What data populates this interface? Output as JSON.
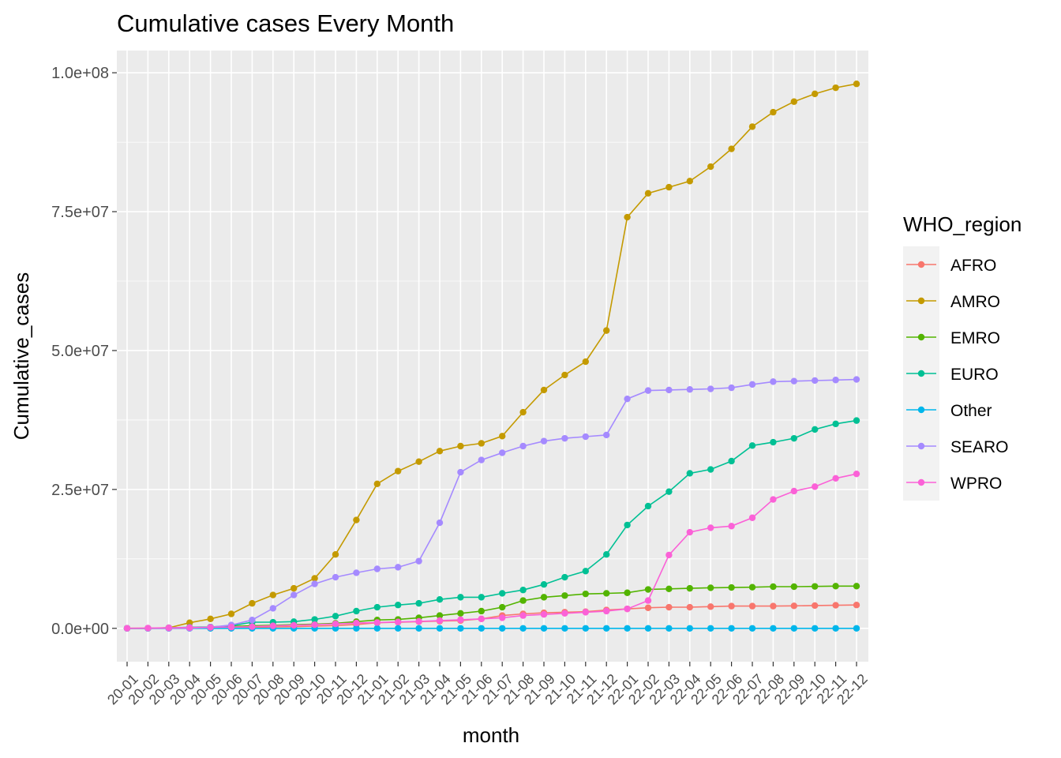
{
  "chart_data": {
    "type": "line",
    "title": "Cumulative cases Every Month",
    "xlabel": "month",
    "ylabel": "Cumulative_cases",
    "ylim": [
      -6000000,
      104000000
    ],
    "yticks": [
      0,
      25000000,
      50000000,
      75000000,
      100000000
    ],
    "ytick_labels": [
      "0.0e+00",
      "2.5e+07",
      "5.0e+07",
      "7.5e+07",
      "1.0e+08"
    ],
    "grid": true,
    "legend_title": "WHO_region",
    "legend_position": "right",
    "categories": [
      "20-01",
      "20-02",
      "20-03",
      "20-04",
      "20-05",
      "20-06",
      "20-07",
      "20-08",
      "20-09",
      "20-10",
      "20-11",
      "20-12",
      "21-01",
      "21-02",
      "21-03",
      "21-04",
      "21-05",
      "21-06",
      "21-07",
      "21-08",
      "21-09",
      "21-10",
      "21-11",
      "21-12",
      "22-01",
      "22-02",
      "22-03",
      "22-04",
      "22-05",
      "22-06",
      "22-07",
      "22-08",
      "22-09",
      "22-10",
      "22-11",
      "22-12"
    ],
    "series": [
      {
        "name": "AFRO",
        "color": "#F8766D",
        "values": [
          0,
          0,
          0,
          0,
          10000,
          50000,
          150000,
          250000,
          300000,
          400000,
          500000,
          700000,
          1000000,
          1100000,
          1200000,
          1300000,
          1400000,
          1700000,
          2300000,
          2600000,
          2800000,
          2900000,
          3000000,
          3300000,
          3500000,
          3700000,
          3800000,
          3800000,
          3900000,
          4000000,
          4000000,
          4000000,
          4050000,
          4100000,
          4150000,
          4200000
        ]
      },
      {
        "name": "AMRO",
        "color": "#C49A00",
        "values": [
          5000,
          10000,
          100000,
          1000000,
          1700000,
          2600000,
          4500000,
          6000000,
          7200000,
          9000000,
          13300000,
          19500000,
          26000000,
          28300000,
          30000000,
          31900000,
          32800000,
          33300000,
          34600000,
          38900000,
          42900000,
          45600000,
          48000000,
          53600000,
          74000000,
          78300000,
          79400000,
          80500000,
          83100000,
          86300000,
          90300000,
          92900000,
          94800000,
          96200000,
          97300000,
          98000000
        ]
      },
      {
        "name": "EMRO",
        "color": "#53B400",
        "values": [
          0,
          0,
          10000,
          50000,
          150000,
          350000,
          450000,
          550000,
          650000,
          750000,
          900000,
          1200000,
          1500000,
          1600000,
          1900000,
          2300000,
          2700000,
          3100000,
          3800000,
          5000000,
          5600000,
          5900000,
          6200000,
          6300000,
          6400000,
          7000000,
          7100000,
          7200000,
          7300000,
          7350000,
          7400000,
          7500000,
          7500000,
          7550000,
          7600000,
          7600000
        ]
      },
      {
        "name": "EURO",
        "color": "#00C094",
        "values": [
          0,
          0,
          100000,
          200000,
          250000,
          450000,
          1100000,
          1100000,
          1200000,
          1600000,
          2200000,
          3100000,
          3800000,
          4200000,
          4500000,
          5200000,
          5600000,
          5600000,
          6300000,
          6900000,
          7900000,
          9200000,
          10300000,
          13300000,
          18600000,
          22000000,
          24600000,
          27900000,
          28600000,
          30100000,
          32900000,
          33500000,
          34200000,
          35800000,
          36800000,
          37400000
        ]
      },
      {
        "name": "Other",
        "color": "#00B6EB",
        "values": [
          0,
          0,
          0,
          0,
          0,
          0,
          0,
          0,
          0,
          0,
          0,
          0,
          0,
          0,
          0,
          0,
          0,
          0,
          0,
          0,
          0,
          0,
          0,
          0,
          0,
          0,
          0,
          0,
          0,
          0,
          0,
          0,
          0,
          0,
          0,
          0
        ]
      },
      {
        "name": "SEARO",
        "color": "#A58AFF",
        "values": [
          0,
          0,
          0,
          10000,
          200000,
          600000,
          1500000,
          3600000,
          6000000,
          8000000,
          9200000,
          10000000,
          10700000,
          11000000,
          12100000,
          19000000,
          28100000,
          30300000,
          31600000,
          32800000,
          33700000,
          34200000,
          34500000,
          34800000,
          41300000,
          42800000,
          42900000,
          43000000,
          43100000,
          43300000,
          43900000,
          44400000,
          44500000,
          44600000,
          44700000,
          44800000
        ]
      },
      {
        "name": "WPRO",
        "color": "#FB61D7",
        "values": [
          10000,
          50000,
          100000,
          150000,
          180000,
          220000,
          300000,
          450000,
          550000,
          650000,
          800000,
          950000,
          1050000,
          1150000,
          1250000,
          1400000,
          1550000,
          1700000,
          1900000,
          2300000,
          2500000,
          2700000,
          2900000,
          3100000,
          3500000,
          5000000,
          13200000,
          17300000,
          18100000,
          18400000,
          19900000,
          23200000,
          24700000,
          25500000,
          27000000,
          27800000
        ]
      }
    ]
  }
}
